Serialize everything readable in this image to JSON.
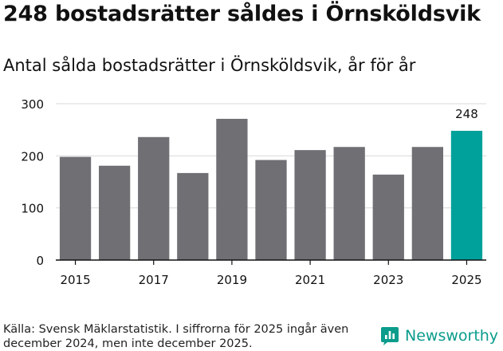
{
  "title": "248 bostadsrätter såldes i Örnsköldsvik",
  "subtitle": "Antal sålda bostadsrätter i Örnsköldsvik, år för år",
  "source": "Källa: Svensk Mäklarstatistik. I siffrorna för 2025 ingår även december 2024, men inte december 2025.",
  "brand": {
    "name": "Newsworthy",
    "icon": "newsworthy-logo-icon",
    "color": "#0b9c8c"
  },
  "colors": {
    "bar": "#706f74",
    "highlight": "#00a19a",
    "grid": "#d9d9d9",
    "axis": "#111111"
  },
  "chart_data": {
    "type": "bar",
    "title": "248 bostadsrätter såldes i Örnsköldsvik",
    "subtitle": "Antal sålda bostadsrätter i Örnsköldsvik, år för år",
    "xlabel": "",
    "ylabel": "",
    "categories": [
      "2015",
      "2016",
      "2017",
      "2018",
      "2019",
      "2020",
      "2021",
      "2022",
      "2023",
      "2024",
      "2025"
    ],
    "values": [
      198,
      181,
      236,
      167,
      271,
      192,
      211,
      217,
      164,
      217,
      248
    ],
    "highlight_index": 10,
    "data_labels": [
      {
        "index": 10,
        "text": "248"
      }
    ],
    "xtick_labels": [
      "2015",
      "2017",
      "2019",
      "2021",
      "2023",
      "2025"
    ],
    "ytick_values": [
      0,
      100,
      200,
      300
    ],
    "ylim": [
      0,
      300
    ],
    "grid": true,
    "legend": null
  }
}
